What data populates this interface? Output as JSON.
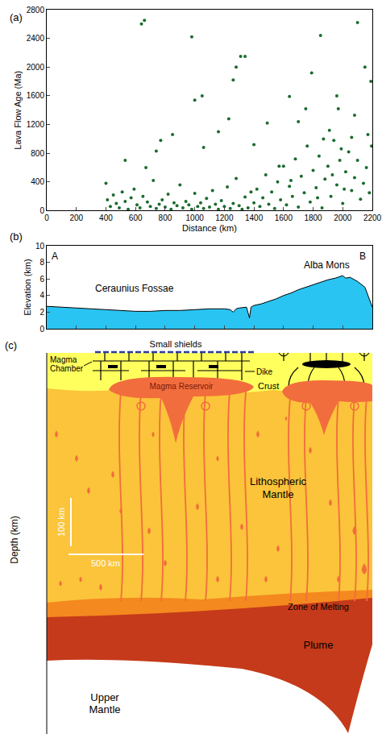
{
  "chart_data": [
    {
      "type": "scatter",
      "title": "(a)",
      "x_label": "Distance (km)",
      "y_label": "Lava Flow Age (Ma)",
      "x": [
        640,
        660,
        980,
        1310,
        1340,
        1280,
        1260,
        1000,
        1050,
        1790,
        1850,
        2100,
        2150,
        2190,
        1640,
        1960,
        670,
        530,
        1970,
        1700,
        1750,
        2080,
        1490,
        850,
        770,
        1230,
        1910,
        2170,
        1160,
        1400,
        1060,
        740,
        400,
        410,
        430,
        450,
        470,
        490,
        510,
        530,
        550,
        570,
        590,
        610,
        630,
        650,
        680,
        700,
        720,
        740,
        760,
        780,
        800,
        820,
        840,
        860,
        880,
        900,
        920,
        940,
        960,
        980,
        1000,
        1020,
        1040,
        1060,
        1080,
        1100,
        1120,
        1140,
        1160,
        1180,
        1200,
        1220,
        1240,
        1260,
        1280,
        1300,
        1320,
        1340,
        1360,
        1380,
        1400,
        1420,
        1440,
        1460,
        1480,
        1500,
        1520,
        1540,
        1560,
        1580,
        1600,
        1620,
        1640,
        1660,
        1680,
        1700,
        1720,
        1740,
        1760,
        1780,
        1800,
        1820,
        1840,
        1860,
        1880,
        1900,
        1920,
        1940,
        1960,
        1980,
        2000,
        2020,
        2040,
        2060,
        2080,
        2100,
        2120,
        2140,
        2160,
        2180,
        2195,
        1870,
        1990,
        2060,
        1830,
        1650,
        1570,
        1930,
        2010
      ],
      "values": [
        2600,
        2650,
        2420,
        2150,
        2150,
        2000,
        1820,
        1540,
        1600,
        1920,
        2440,
        2620,
        2000,
        1800,
        1590,
        1600,
        600,
        700,
        1420,
        1240,
        1420,
        1330,
        1220,
        1060,
        980,
        1280,
        1120,
        1060,
        1100,
        920,
        880,
        830,
        380,
        150,
        60,
        220,
        100,
        40,
        260,
        130,
        20,
        180,
        300,
        80,
        40,
        200,
        120,
        60,
        420,
        30,
        90,
        150,
        50,
        230,
        20,
        110,
        70,
        360,
        40,
        130,
        80,
        20,
        240,
        60,
        110,
        30,
        170,
        50,
        280,
        90,
        20,
        140,
        60,
        330,
        30,
        100,
        450,
        70,
        20,
        190,
        40,
        260,
        110,
        300,
        60,
        180,
        500,
        90,
        260,
        30,
        400,
        150,
        620,
        80,
        340,
        200,
        720,
        50,
        480,
        250,
        900,
        120,
        560,
        320,
        760,
        40,
        440,
        620,
        200,
        980,
        360,
        700,
        100,
        540,
        820,
        280,
        460,
        700,
        160,
        380,
        600,
        250,
        900,
        1000,
        860,
        1020,
        180,
        420,
        620,
        500,
        300
      ],
      "color": "#1b6b2e",
      "marker": "circle",
      "xlim": [
        0,
        2200
      ],
      "xticks": [
        0,
        200,
        400,
        600,
        800,
        1000,
        1200,
        1400,
        1600,
        1800,
        2000,
        2200
      ],
      "ylim": [
        0,
        2800
      ],
      "yticks": [
        0,
        400,
        800,
        1200,
        1600,
        2000,
        2400,
        2800
      ],
      "grid": false
    },
    {
      "type": "area",
      "title": "(b)",
      "y_label": "Elevation (km)",
      "annotations": [
        "A",
        "B",
        "Ceraunius Fossae",
        "Alba Mons"
      ],
      "x": [
        0,
        100,
        200,
        300,
        400,
        500,
        600,
        700,
        800,
        900,
        1000,
        1100,
        1200,
        1240,
        1260,
        1280,
        1300,
        1350,
        1370,
        1380,
        1400,
        1450,
        1500,
        1550,
        1600,
        1650,
        1700,
        1750,
        1800,
        1850,
        1900,
        1950,
        1980,
        2000,
        2020,
        2050,
        2100,
        2150,
        2200
      ],
      "values": [
        2.7,
        2.6,
        2.5,
        2.4,
        2.3,
        2.2,
        2.1,
        2.1,
        2.2,
        2.2,
        2.3,
        2.4,
        2.4,
        2.3,
        2.0,
        2.4,
        2.5,
        2.6,
        1.3,
        2.6,
        2.8,
        3.0,
        3.3,
        3.6,
        4.0,
        4.3,
        4.7,
        5.0,
        5.3,
        5.6,
        5.9,
        6.1,
        6.3,
        6.4,
        6.1,
        6.2,
        5.7,
        5.0,
        2.6
      ],
      "color": "#2ac4f2",
      "xlim": [
        0,
        2200
      ],
      "xticks": [
        0,
        200,
        400,
        600,
        800,
        1000,
        1200,
        1400,
        1600,
        1800,
        2000,
        2200
      ],
      "ylim": [
        0,
        10
      ],
      "yticks": [
        0,
        2,
        4,
        6,
        8,
        10
      ],
      "tick_labels": "y",
      "grid": false
    }
  ],
  "diagram": {
    "title": "(c)",
    "y_label": "Depth (km)",
    "labels": {
      "small_shields": "Small shields",
      "magma_chamber": [
        "Magma",
        "Chamber"
      ],
      "dike": "Dike",
      "crust": "Crust",
      "magma_reservoir": "Magma Reservoir",
      "lithospheric_mantle": [
        "Lithospheric",
        "Mantle"
      ],
      "zone_of_melting": "Zone of Melting",
      "plume": "Plume",
      "upper_mantle": [
        "Upper",
        "Mantle"
      ]
    },
    "scale_bars": [
      "100 km",
      "500 km"
    ]
  }
}
